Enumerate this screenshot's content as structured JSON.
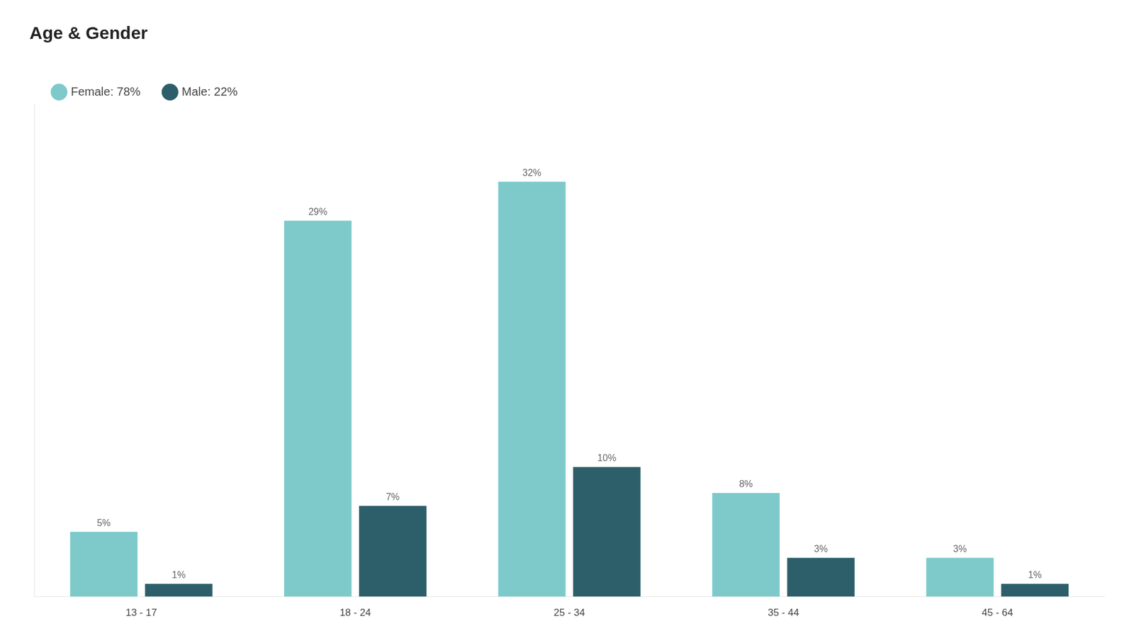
{
  "chart_data": {
    "type": "bar",
    "title": "Age & Gender",
    "categories": [
      "13 - 17",
      "18 - 24",
      "25 - 34",
      "35 - 44",
      "45 - 64"
    ],
    "series": [
      {
        "name": "Female: 78%",
        "color": "#7ecacb",
        "values": [
          5,
          29,
          32,
          8,
          3
        ],
        "value_labels": [
          "5%",
          "29%",
          "32%",
          "8%",
          "3%"
        ]
      },
      {
        "name": "Male: 22%",
        "color": "#2d5f6b",
        "values": [
          1,
          7,
          10,
          3,
          1
        ],
        "value_labels": [
          "1%",
          "7%",
          "10%",
          "3%",
          "1%"
        ]
      }
    ],
    "ylim": [
      0,
      38
    ],
    "grid": false,
    "legend": "upper left",
    "data_labels": true,
    "tick_labels": "x"
  }
}
